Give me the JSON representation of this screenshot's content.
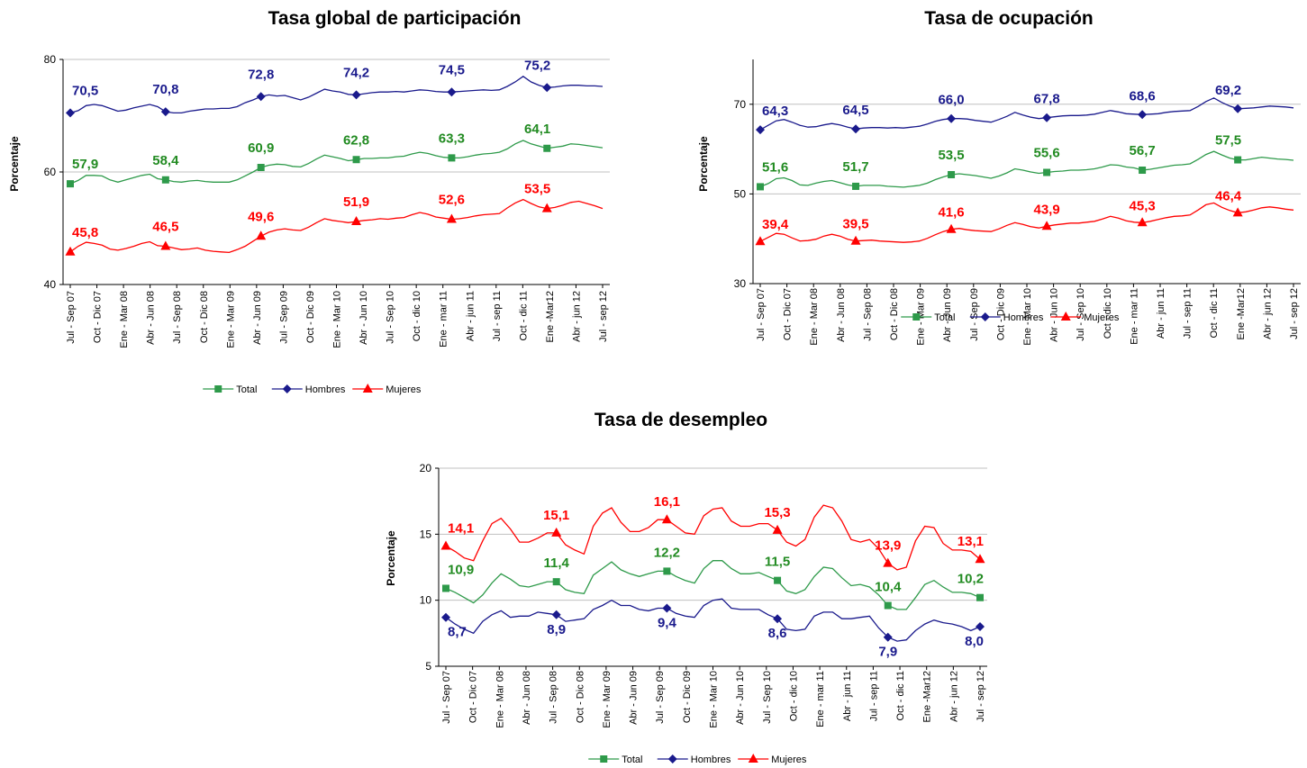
{
  "colors": {
    "Total": "#2e9a4a",
    "Hombres": "#1a1a8c",
    "Mujeres": "#ff0000",
    "total_label": "#228b22"
  },
  "x_labels": [
    "Jul - Sep 07",
    "Oct - Dic 07",
    "Ene - Mar 08",
    "Abr - Jun 08",
    "Jul - Sep 08",
    "Oct - Dic 08",
    "Ene - Mar 09",
    "Abr - Jun 09",
    "Jul - Sep 09",
    "Oct - Dic 09",
    "Ene - Mar 10",
    "Abr - Jun 10",
    "Jul - Sep 10",
    "Oct - dic 10",
    "Ene - mar 11",
    "Abr - jun 11",
    "Jul - sep 11",
    "Oct - dic 11",
    "Ene -Mar12",
    "Abr - jun 12",
    "Jul - sep 12"
  ],
  "chart_data": [
    {
      "id": "tgp",
      "type": "line",
      "title": "Tasa global de participación",
      "ylabel": "Porcentaje",
      "xlabel": "",
      "ylim": [
        40,
        80
      ],
      "yticks": [
        40,
        60,
        80
      ],
      "grid": true,
      "legend": "bottom",
      "label_positions": [
        0,
        12,
        24,
        36,
        48,
        60
      ],
      "series": [
        {
          "name": "Total",
          "marker": "square",
          "values": [
            57.9,
            58.5,
            59.4,
            59.4,
            59.3,
            58.6,
            58.2,
            58.6,
            59.0,
            59.4,
            59.6,
            58.8,
            58.6,
            58.3,
            58.2,
            58.4,
            58.5,
            58.3,
            58.2,
            58.2,
            58.2,
            58.6,
            59.3,
            60.0,
            60.8,
            61.2,
            61.4,
            61.3,
            61.0,
            60.9,
            61.5,
            62.3,
            63.0,
            62.7,
            62.4,
            62.0,
            62.2,
            62.4,
            62.4,
            62.5,
            62.5,
            62.7,
            62.8,
            63.2,
            63.5,
            63.3,
            62.9,
            62.6,
            62.5,
            62.5,
            62.7,
            63.0,
            63.2,
            63.3,
            63.5,
            64.1,
            65.0,
            65.6,
            65.0,
            64.6,
            64.2,
            64.4,
            64.6,
            65.0,
            64.9,
            64.7,
            64.5,
            64.3
          ],
          "labels": [
            "57,9",
            "58,4",
            "60,9",
            "62,8",
            "63,3",
            "64,1"
          ]
        },
        {
          "name": "Hombres",
          "marker": "diamond",
          "values": [
            70.5,
            70.9,
            71.8,
            72.0,
            71.8,
            71.3,
            70.8,
            71.0,
            71.4,
            71.7,
            72.0,
            71.6,
            70.7,
            70.5,
            70.5,
            70.8,
            71.0,
            71.2,
            71.2,
            71.3,
            71.3,
            71.6,
            72.3,
            72.8,
            73.4,
            73.7,
            73.5,
            73.6,
            73.2,
            72.8,
            73.3,
            74.0,
            74.7,
            74.4,
            74.2,
            73.8,
            73.7,
            73.9,
            74.1,
            74.2,
            74.2,
            74.3,
            74.2,
            74.4,
            74.6,
            74.5,
            74.3,
            74.2,
            74.2,
            74.3,
            74.4,
            74.5,
            74.6,
            74.5,
            74.6,
            75.2,
            76.0,
            77.0,
            76.0,
            75.4,
            75.0,
            75.1,
            75.3,
            75.4,
            75.4,
            75.3,
            75.3,
            75.2
          ],
          "labels": [
            "70,5",
            "70,8",
            "72,8",
            "74,2",
            "74,5",
            "75,2"
          ]
        },
        {
          "name": "Mujeres",
          "marker": "triangle",
          "values": [
            45.8,
            46.8,
            47.5,
            47.3,
            47.0,
            46.3,
            46.1,
            46.4,
            46.8,
            47.3,
            47.6,
            46.9,
            46.8,
            46.5,
            46.2,
            46.3,
            46.5,
            46.1,
            45.9,
            45.8,
            45.7,
            46.2,
            46.8,
            47.7,
            48.6,
            49.3,
            49.7,
            49.9,
            49.7,
            49.6,
            50.2,
            51.0,
            51.7,
            51.4,
            51.2,
            51.0,
            51.2,
            51.4,
            51.5,
            51.7,
            51.6,
            51.8,
            51.9,
            52.4,
            52.8,
            52.5,
            52.0,
            51.8,
            51.6,
            51.7,
            51.9,
            52.2,
            52.4,
            52.5,
            52.6,
            53.6,
            54.5,
            55.1,
            54.4,
            53.8,
            53.5,
            53.7,
            54.1,
            54.6,
            54.8,
            54.4,
            54.0,
            53.5
          ],
          "labels": [
            "45,8",
            "46,5",
            "49,6",
            "51,9",
            "52,6",
            "53,5"
          ]
        }
      ]
    },
    {
      "id": "to",
      "type": "line",
      "title": "Tasa de ocupación",
      "ylabel": "Porcentaje",
      "xlabel": "",
      "ylim": [
        30,
        80
      ],
      "yticks": [
        30,
        50,
        70
      ],
      "grid": true,
      "legend": "bottom",
      "label_positions": [
        0,
        12,
        24,
        36,
        48,
        60
      ],
      "series": [
        {
          "name": "Total",
          "marker": "square",
          "values": [
            51.6,
            52.3,
            53.4,
            53.6,
            53.0,
            52.0,
            51.9,
            52.4,
            52.8,
            53.0,
            52.5,
            52.0,
            51.7,
            51.9,
            51.9,
            51.9,
            51.7,
            51.6,
            51.5,
            51.7,
            51.9,
            52.4,
            53.2,
            53.8,
            54.3,
            54.5,
            54.3,
            54.1,
            53.8,
            53.5,
            54.0,
            54.7,
            55.6,
            55.3,
            54.9,
            54.6,
            54.8,
            55.0,
            55.1,
            55.3,
            55.3,
            55.4,
            55.6,
            56.0,
            56.5,
            56.4,
            56.0,
            55.8,
            55.3,
            55.5,
            55.8,
            56.1,
            56.4,
            56.5,
            56.7,
            57.7,
            58.8,
            59.5,
            58.7,
            58.0,
            57.6,
            57.6,
            57.9,
            58.2,
            58.0,
            57.8,
            57.7,
            57.5
          ],
          "labels": [
            "51,6",
            "51,7",
            "53,5",
            "55,6",
            "56,7",
            "57,5"
          ]
        },
        {
          "name": "Hombres",
          "marker": "diamond",
          "values": [
            64.3,
            65.3,
            66.3,
            66.6,
            66.0,
            65.3,
            64.9,
            65.0,
            65.4,
            65.7,
            65.4,
            64.9,
            64.5,
            64.7,
            64.8,
            64.8,
            64.7,
            64.8,
            64.7,
            64.9,
            65.1,
            65.6,
            66.2,
            66.6,
            66.8,
            66.8,
            66.7,
            66.4,
            66.2,
            66.0,
            66.6,
            67.3,
            68.2,
            67.6,
            67.1,
            66.8,
            67.0,
            67.2,
            67.4,
            67.5,
            67.5,
            67.6,
            67.8,
            68.2,
            68.6,
            68.3,
            67.9,
            67.8,
            67.7,
            67.8,
            67.9,
            68.2,
            68.4,
            68.5,
            68.6,
            69.5,
            70.6,
            71.4,
            70.4,
            69.6,
            69.0,
            69.1,
            69.2,
            69.4,
            69.6,
            69.5,
            69.4,
            69.2
          ],
          "labels": [
            "64,3",
            "64,5",
            "66,0",
            "67,8",
            "68,6",
            "69,2"
          ]
        },
        {
          "name": "Mujeres",
          "marker": "triangle",
          "values": [
            39.4,
            40.3,
            41.2,
            41.0,
            40.2,
            39.5,
            39.6,
            39.9,
            40.6,
            41.0,
            40.6,
            39.9,
            39.5,
            39.6,
            39.7,
            39.5,
            39.4,
            39.3,
            39.2,
            39.3,
            39.5,
            40.1,
            40.9,
            41.6,
            42.1,
            42.3,
            42.0,
            41.8,
            41.7,
            41.6,
            42.2,
            43.0,
            43.6,
            43.2,
            42.7,
            42.4,
            42.8,
            43.1,
            43.3,
            43.5,
            43.5,
            43.7,
            43.9,
            44.4,
            45.0,
            44.6,
            44.0,
            43.7,
            43.6,
            43.9,
            44.3,
            44.7,
            45.0,
            45.1,
            45.3,
            46.4,
            47.6,
            48.0,
            47.0,
            46.3,
            45.8,
            46.0,
            46.4,
            46.9,
            47.1,
            46.9,
            46.6,
            46.4
          ],
          "labels": [
            "39,4",
            "39,5",
            "41,6",
            "43,9",
            "45,3",
            "46,4"
          ]
        }
      ]
    },
    {
      "id": "td",
      "type": "line",
      "title": "Tasa de desempleo",
      "ylabel": "Porcentaje",
      "xlabel": "",
      "ylim": [
        5,
        20
      ],
      "yticks": [
        5,
        10,
        15,
        20
      ],
      "grid": true,
      "legend": "bottom",
      "label_positions": [
        0,
        12,
        24,
        36,
        48,
        60
      ],
      "series": [
        {
          "name": "Total",
          "marker": "square",
          "values": [
            10.9,
            10.6,
            10.2,
            9.8,
            10.4,
            11.3,
            12.0,
            11.6,
            11.1,
            11.0,
            11.2,
            11.4,
            11.4,
            10.8,
            10.6,
            10.5,
            11.9,
            12.4,
            12.9,
            12.3,
            12.0,
            11.8,
            12.0,
            12.2,
            12.2,
            11.8,
            11.5,
            11.3,
            12.4,
            13.0,
            13.0,
            12.4,
            12.0,
            12.0,
            12.1,
            11.8,
            11.5,
            10.7,
            10.5,
            10.8,
            11.8,
            12.5,
            12.4,
            11.7,
            11.1,
            11.2,
            11.0,
            10.4,
            9.6,
            9.3,
            9.3,
            10.2,
            11.2,
            11.5,
            11.0,
            10.6,
            10.6,
            10.5,
            10.2
          ],
          "labels": [
            "10,9",
            "11,4",
            "12,2",
            "11,5",
            "10,4",
            "10,2"
          ]
        },
        {
          "name": "Hombres",
          "marker": "diamond",
          "values": [
            8.7,
            8.2,
            7.8,
            7.5,
            8.4,
            8.9,
            9.2,
            8.7,
            8.8,
            8.8,
            9.1,
            9.0,
            8.9,
            8.4,
            8.5,
            8.6,
            9.3,
            9.6,
            10.0,
            9.6,
            9.6,
            9.3,
            9.2,
            9.4,
            9.4,
            9.0,
            8.8,
            8.7,
            9.6,
            10.0,
            10.1,
            9.4,
            9.3,
            9.3,
            9.3,
            8.9,
            8.6,
            7.8,
            7.7,
            7.8,
            8.8,
            9.1,
            9.1,
            8.6,
            8.6,
            8.7,
            8.8,
            7.9,
            7.2,
            6.9,
            7.0,
            7.7,
            8.2,
            8.5,
            8.3,
            8.2,
            8.0,
            7.7,
            8.0
          ],
          "labels": [
            "8,7",
            "8,9",
            "9,4",
            "8,6",
            "7,9",
            "8,0"
          ]
        },
        {
          "name": "Mujeres",
          "marker": "triangle",
          "values": [
            14.1,
            13.7,
            13.2,
            13.0,
            14.5,
            15.8,
            16.2,
            15.4,
            14.4,
            14.4,
            14.7,
            15.1,
            15.1,
            14.2,
            13.8,
            13.5,
            15.6,
            16.6,
            17.0,
            15.9,
            15.2,
            15.2,
            15.5,
            16.1,
            16.1,
            15.6,
            15.1,
            15.0,
            16.4,
            16.9,
            17.0,
            16.0,
            15.6,
            15.6,
            15.8,
            15.8,
            15.3,
            14.4,
            14.1,
            14.6,
            16.3,
            17.2,
            17.0,
            16.0,
            14.6,
            14.4,
            14.6,
            13.9,
            12.8,
            12.3,
            12.5,
            14.5,
            15.6,
            15.5,
            14.3,
            13.8,
            13.8,
            13.7,
            13.1
          ],
          "labels": [
            "14,1",
            "15,1",
            "16,1",
            "15,3",
            "13,9",
            "13,1"
          ]
        }
      ]
    }
  ]
}
